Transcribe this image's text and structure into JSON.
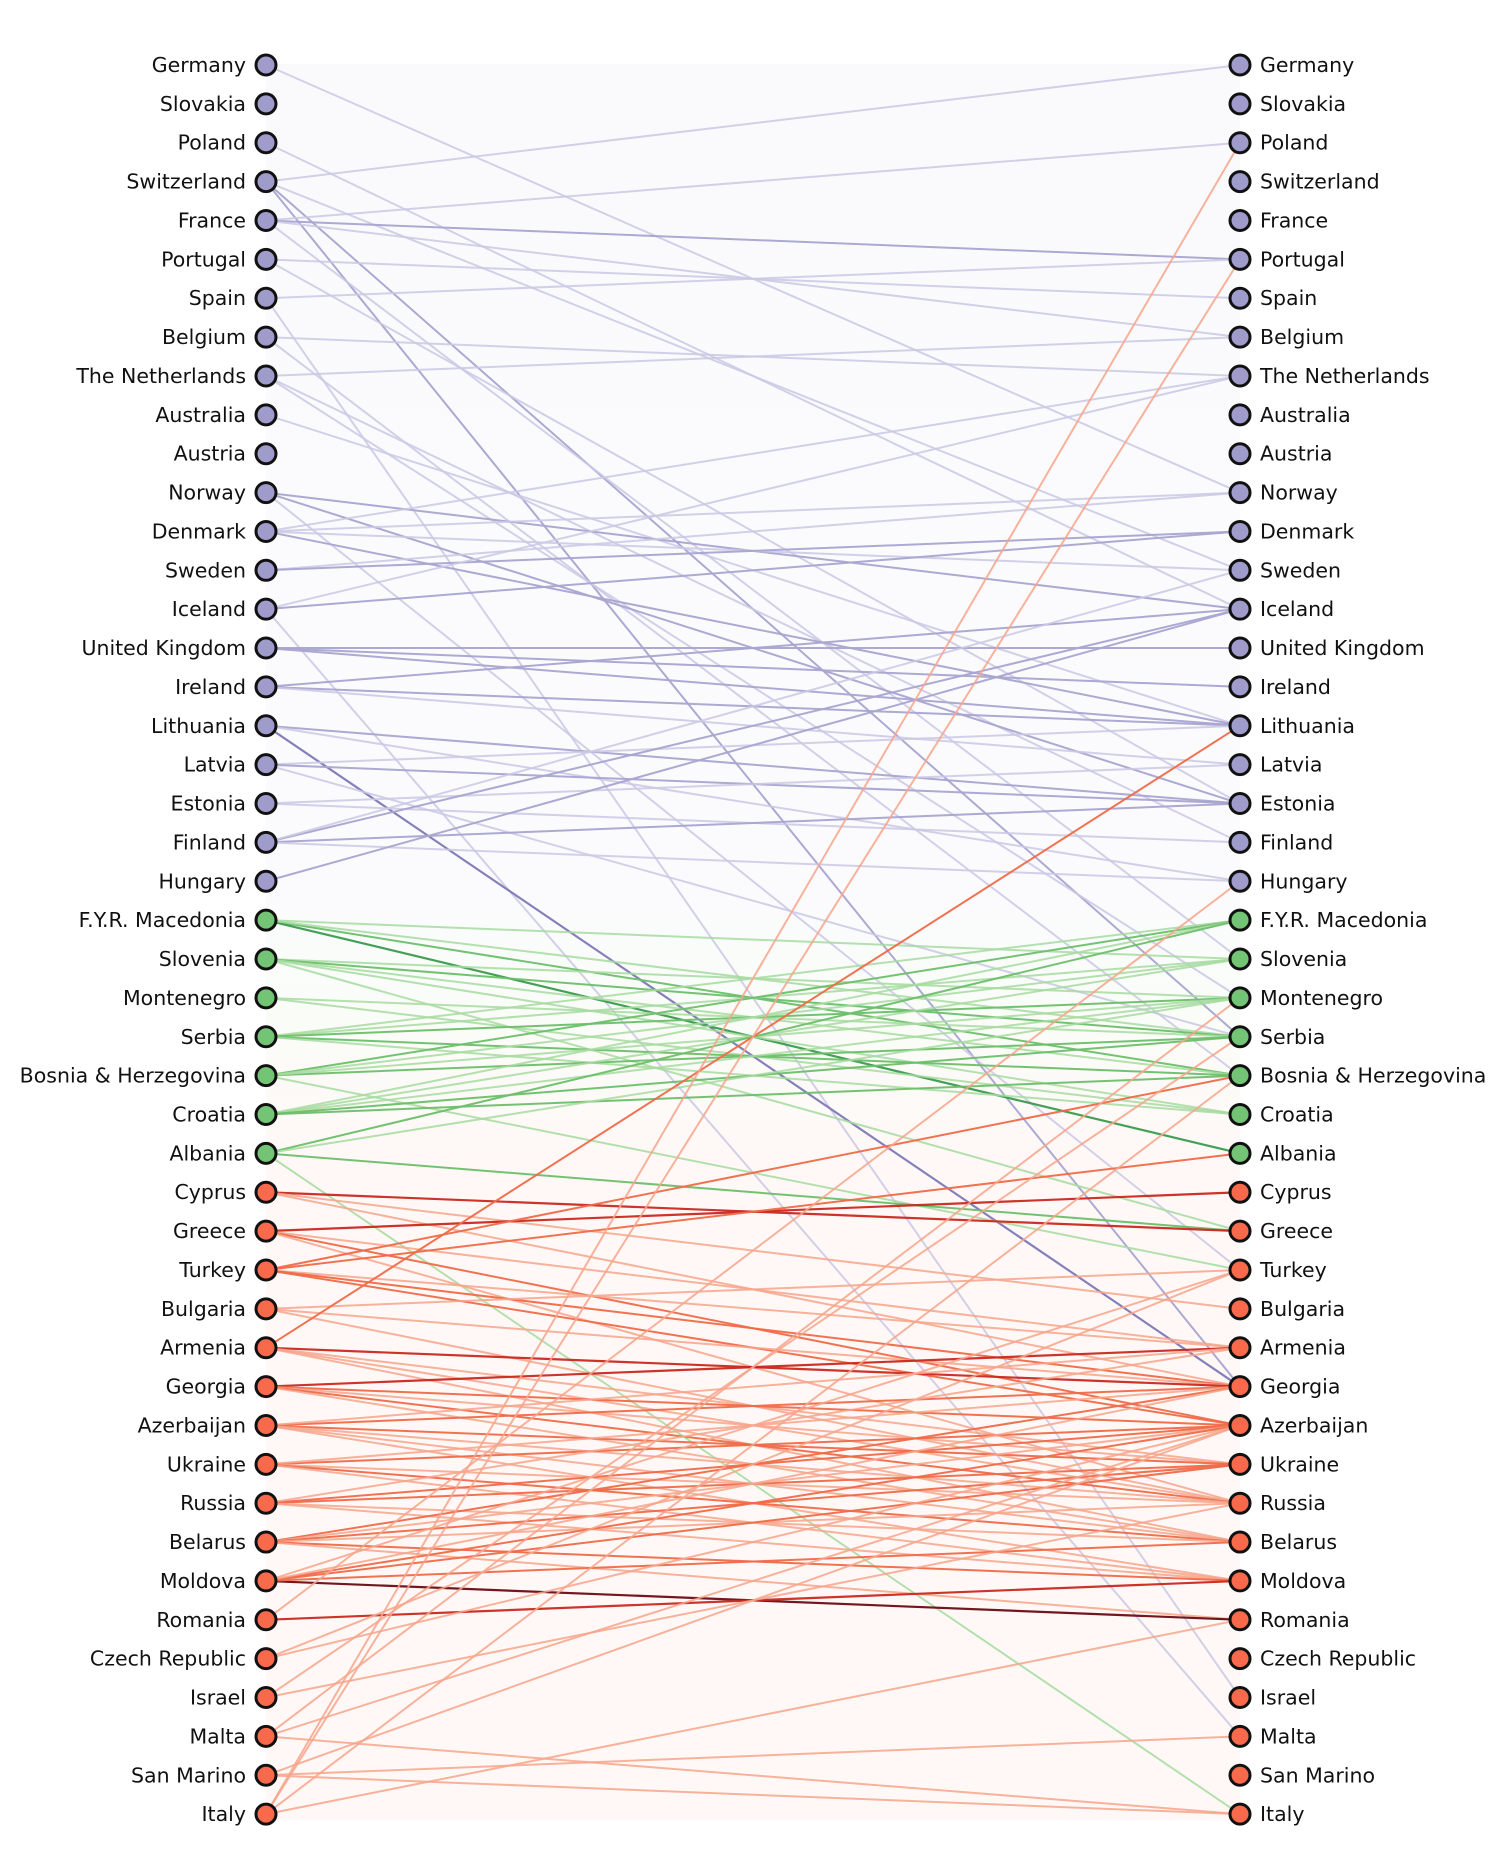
{
  "countries": [
    "Germany",
    "Slovakia",
    "Poland",
    "Switzerland",
    "France",
    "Portugal",
    "Spain",
    "Belgium",
    "The Netherlands",
    "Australia",
    "Austria",
    "Norway",
    "Denmark",
    "Sweden",
    "Iceland",
    "United Kingdom",
    "Ireland",
    "Lithuania",
    "Latvia",
    "Estonia",
    "Finland",
    "Hungary",
    "F.Y.R. Macedonia",
    "Slovenia",
    "Montenegro",
    "Serbia",
    "Bosnia & Herzegovina",
    "Croatia",
    "Albania",
    "Cyprus",
    "Greece",
    "Turkey",
    "Bulgaria",
    "Armenia",
    "Georgia",
    "Azerbaijan",
    "Ukraine",
    "Russia",
    "Belarus",
    "Moldova",
    "Romania",
    "Czech Republic",
    "Israel",
    "Malta",
    "San Marino",
    "Italy"
  ],
  "groups": [
    {
      "color": "#9f9bcb",
      "count": 22
    },
    {
      "color": "#74c476",
      "count": 7
    },
    {
      "color": "#f96a4c",
      "count": 17
    }
  ],
  "edge_colors": {
    "blue": [
      "#cac8e4",
      "#a8a4d0",
      "#7e79b6"
    ],
    "green": [
      "#a6dba0",
      "#6cbf6a",
      "#3a9a4e"
    ],
    "red": [
      "#f7a48b",
      "#f06a48",
      "#c9281f",
      "#6a0a14"
    ]
  },
  "edges": [
    [
      "Germany",
      "Norway",
      0
    ],
    [
      "Poland",
      "Iceland",
      0
    ],
    [
      "Switzerland",
      "Germany",
      0
    ],
    [
      "Switzerland",
      "Sweden",
      0
    ],
    [
      "Switzerland",
      "Serbia",
      1
    ],
    [
      "Switzerland",
      "Georgia",
      1
    ],
    [
      "France",
      "Poland",
      0
    ],
    [
      "France",
      "Portugal",
      1
    ],
    [
      "France",
      "Belgium",
      0
    ],
    [
      "France",
      "Slovenia",
      0
    ],
    [
      "Portugal",
      "Spain",
      0
    ],
    [
      "Portugal",
      "Estonia",
      0
    ],
    [
      "Spain",
      "Portugal",
      0
    ],
    [
      "Spain",
      "Israel",
      0
    ],
    [
      "Belgium",
      "The Netherlands",
      0
    ],
    [
      "Belgium",
      "Bosnia & Herzegovina",
      0
    ],
    [
      "The Netherlands",
      "Belgium",
      0
    ],
    [
      "The Netherlands",
      "Finland",
      0
    ],
    [
      "The Netherlands",
      "Montenegro",
      0
    ],
    [
      "Australia",
      "Lithuania",
      0
    ],
    [
      "Norway",
      "Iceland",
      1
    ],
    [
      "Norway",
      "Estonia",
      1
    ],
    [
      "Norway",
      "Turkey",
      0
    ],
    [
      "Denmark",
      "The Netherlands",
      0
    ],
    [
      "Denmark",
      "Norway",
      0
    ],
    [
      "Denmark",
      "Sweden",
      0
    ],
    [
      "Denmark",
      "Lithuania",
      1
    ],
    [
      "Sweden",
      "Norway",
      0
    ],
    [
      "Sweden",
      "Denmark",
      1
    ],
    [
      "Iceland",
      "The Netherlands",
      0
    ],
    [
      "Iceland",
      "Denmark",
      1
    ],
    [
      "Iceland",
      "Malta",
      0
    ],
    [
      "United Kingdom",
      "United Kingdom",
      1
    ],
    [
      "United Kingdom",
      "Ireland",
      1
    ],
    [
      "United Kingdom",
      "Lithuania",
      1
    ],
    [
      "Ireland",
      "Iceland",
      1
    ],
    [
      "Ireland",
      "Lithuania",
      1
    ],
    [
      "Ireland",
      "Latvia",
      0
    ],
    [
      "Lithuania",
      "Estonia",
      1
    ],
    [
      "Lithuania",
      "Hungary",
      0
    ],
    [
      "Lithuania",
      "Georgia",
      2
    ],
    [
      "Latvia",
      "Lithuania",
      0
    ],
    [
      "Latvia",
      "Estonia",
      1
    ],
    [
      "Latvia",
      "Serbia",
      0
    ],
    [
      "Estonia",
      "Latvia",
      0
    ],
    [
      "Estonia",
      "Finland",
      0
    ],
    [
      "Finland",
      "Iceland",
      1
    ],
    [
      "Finland",
      "Estonia",
      1
    ],
    [
      "Finland",
      "Sweden",
      0
    ],
    [
      "Finland",
      "Hungary",
      0
    ],
    [
      "Hungary",
      "Iceland",
      1
    ],
    [
      "F.Y.R. Macedonia",
      "Slovenia",
      0
    ],
    [
      "F.Y.R. Macedonia",
      "Bosnia & Herzegovina",
      1
    ],
    [
      "F.Y.R. Macedonia",
      "Albania",
      2
    ],
    [
      "F.Y.R. Macedonia",
      "Serbia",
      0
    ],
    [
      "Slovenia",
      "Montenegro",
      0
    ],
    [
      "Slovenia",
      "Serbia",
      1
    ],
    [
      "Slovenia",
      "Bosnia & Herzegovina",
      0
    ],
    [
      "Slovenia",
      "Croatia",
      0
    ],
    [
      "Slovenia",
      "Greece",
      0
    ],
    [
      "Montenegro",
      "Serbia",
      0
    ],
    [
      "Montenegro",
      "Croatia",
      0
    ],
    [
      "Serbia",
      "F.Y.R. Macedonia",
      0
    ],
    [
      "Serbia",
      "Slovenia",
      0
    ],
    [
      "Serbia",
      "Montenegro",
      1
    ],
    [
      "Serbia",
      "Bosnia & Herzegovina",
      1
    ],
    [
      "Serbia",
      "Croatia",
      0
    ],
    [
      "Bosnia & Herzegovina",
      "F.Y.R. Macedonia",
      1
    ],
    [
      "Bosnia & Herzegovina",
      "Slovenia",
      0
    ],
    [
      "Bosnia & Herzegovina",
      "Serbia",
      1
    ],
    [
      "Bosnia & Herzegovina",
      "Montenegro",
      0
    ],
    [
      "Bosnia & Herzegovina",
      "Turkey",
      0
    ],
    [
      "Croatia",
      "F.Y.R. Macedonia",
      0
    ],
    [
      "Croatia",
      "Slovenia",
      0
    ],
    [
      "Croatia",
      "Montenegro",
      0
    ],
    [
      "Croatia",
      "Serbia",
      1
    ],
    [
      "Croatia",
      "Bosnia & Herzegovina",
      1
    ],
    [
      "Albania",
      "F.Y.R. Macedonia",
      1
    ],
    [
      "Albania",
      "Montenegro",
      0
    ],
    [
      "Albania",
      "Greece",
      1
    ],
    [
      "Albania",
      "Italy",
      0
    ],
    [
      "Cyprus",
      "Greece",
      2
    ],
    [
      "Cyprus",
      "Bulgaria",
      0
    ],
    [
      "Cyprus",
      "Georgia",
      0
    ],
    [
      "Greece",
      "Cyprus",
      2
    ],
    [
      "Greece",
      "Armenia",
      0
    ],
    [
      "Greece",
      "Azerbaijan",
      1
    ],
    [
      "Greece",
      "Russia",
      0
    ],
    [
      "Turkey",
      "Albania",
      1
    ],
    [
      "Turkey",
      "Bosnia & Herzegovina",
      1
    ],
    [
      "Turkey",
      "Armenia",
      0
    ],
    [
      "Turkey",
      "Azerbaijan",
      1
    ],
    [
      "Turkey",
      "Georgia",
      1
    ],
    [
      "Bulgaria",
      "Turkey",
      0
    ],
    [
      "Bulgaria",
      "Georgia",
      0
    ],
    [
      "Bulgaria",
      "Russia",
      0
    ],
    [
      "Armenia",
      "Georgia",
      2
    ],
    [
      "Armenia",
      "Lithuania",
      1
    ],
    [
      "Armenia",
      "Ukraine",
      0
    ],
    [
      "Armenia",
      "Russia",
      0
    ],
    [
      "Armenia",
      "Belarus",
      0
    ],
    [
      "Georgia",
      "Armenia",
      2
    ],
    [
      "Georgia",
      "Azerbaijan",
      1
    ],
    [
      "Georgia",
      "Ukraine",
      0
    ],
    [
      "Georgia",
      "Russia",
      1
    ],
    [
      "Georgia",
      "Belarus",
      0
    ],
    [
      "Azerbaijan",
      "Georgia",
      1
    ],
    [
      "Azerbaijan",
      "Armenia",
      0
    ],
    [
      "Azerbaijan",
      "Ukraine",
      1
    ],
    [
      "Azerbaijan",
      "Russia",
      0
    ],
    [
      "Azerbaijan",
      "Belarus",
      0
    ],
    [
      "Azerbaijan",
      "Moldova",
      0
    ],
    [
      "Ukraine",
      "Azerbaijan",
      1
    ],
    [
      "Ukraine",
      "Georgia",
      0
    ],
    [
      "Ukraine",
      "Russia",
      0
    ],
    [
      "Ukraine",
      "Belarus",
      1
    ],
    [
      "Ukraine",
      "Moldova",
      0
    ],
    [
      "Russia",
      "Azerbaijan",
      1
    ],
    [
      "Russia",
      "Armenia",
      0
    ],
    [
      "Russia",
      "Ukraine",
      1
    ],
    [
      "Russia",
      "Belarus",
      0
    ],
    [
      "Russia",
      "Moldova",
      0
    ],
    [
      "Belarus",
      "Georgia",
      1
    ],
    [
      "Belarus",
      "Azerbaijan",
      0
    ],
    [
      "Belarus",
      "Ukraine",
      1
    ],
    [
      "Belarus",
      "Russia",
      0
    ],
    [
      "Belarus",
      "Moldova",
      1
    ],
    [
      "Belarus",
      "Romania",
      0
    ],
    [
      "Moldova",
      "Romania",
      3
    ],
    [
      "Moldova",
      "Azerbaijan",
      1
    ],
    [
      "Moldova",
      "Ukraine",
      1
    ],
    [
      "Moldova",
      "Belarus",
      1
    ],
    [
      "Moldova",
      "Georgia",
      0
    ],
    [
      "Moldova",
      "Turkey",
      0
    ],
    [
      "Romania",
      "Moldova",
      2
    ],
    [
      "Romania",
      "Hungary",
      0
    ],
    [
      "Czech Republic",
      "Turkey",
      0
    ],
    [
      "Czech Republic",
      "Azerbaijan",
      0
    ],
    [
      "Israel",
      "Russia",
      0
    ],
    [
      "Israel",
      "Serbia",
      0
    ],
    [
      "Malta",
      "Italy",
      0
    ],
    [
      "Malta",
      "Azerbaijan",
      0
    ],
    [
      "Malta",
      "Montenegro",
      0
    ],
    [
      "San Marino",
      "Malta",
      0
    ],
    [
      "San Marino",
      "Italy",
      0
    ],
    [
      "San Marino",
      "Azerbaijan",
      0
    ],
    [
      "Italy",
      "Poland",
      0
    ],
    [
      "Italy",
      "Portugal",
      0
    ],
    [
      "Italy",
      "Bosnia & Herzegovina",
      0
    ],
    [
      "Italy",
      "Romania",
      0
    ]
  ]
}
